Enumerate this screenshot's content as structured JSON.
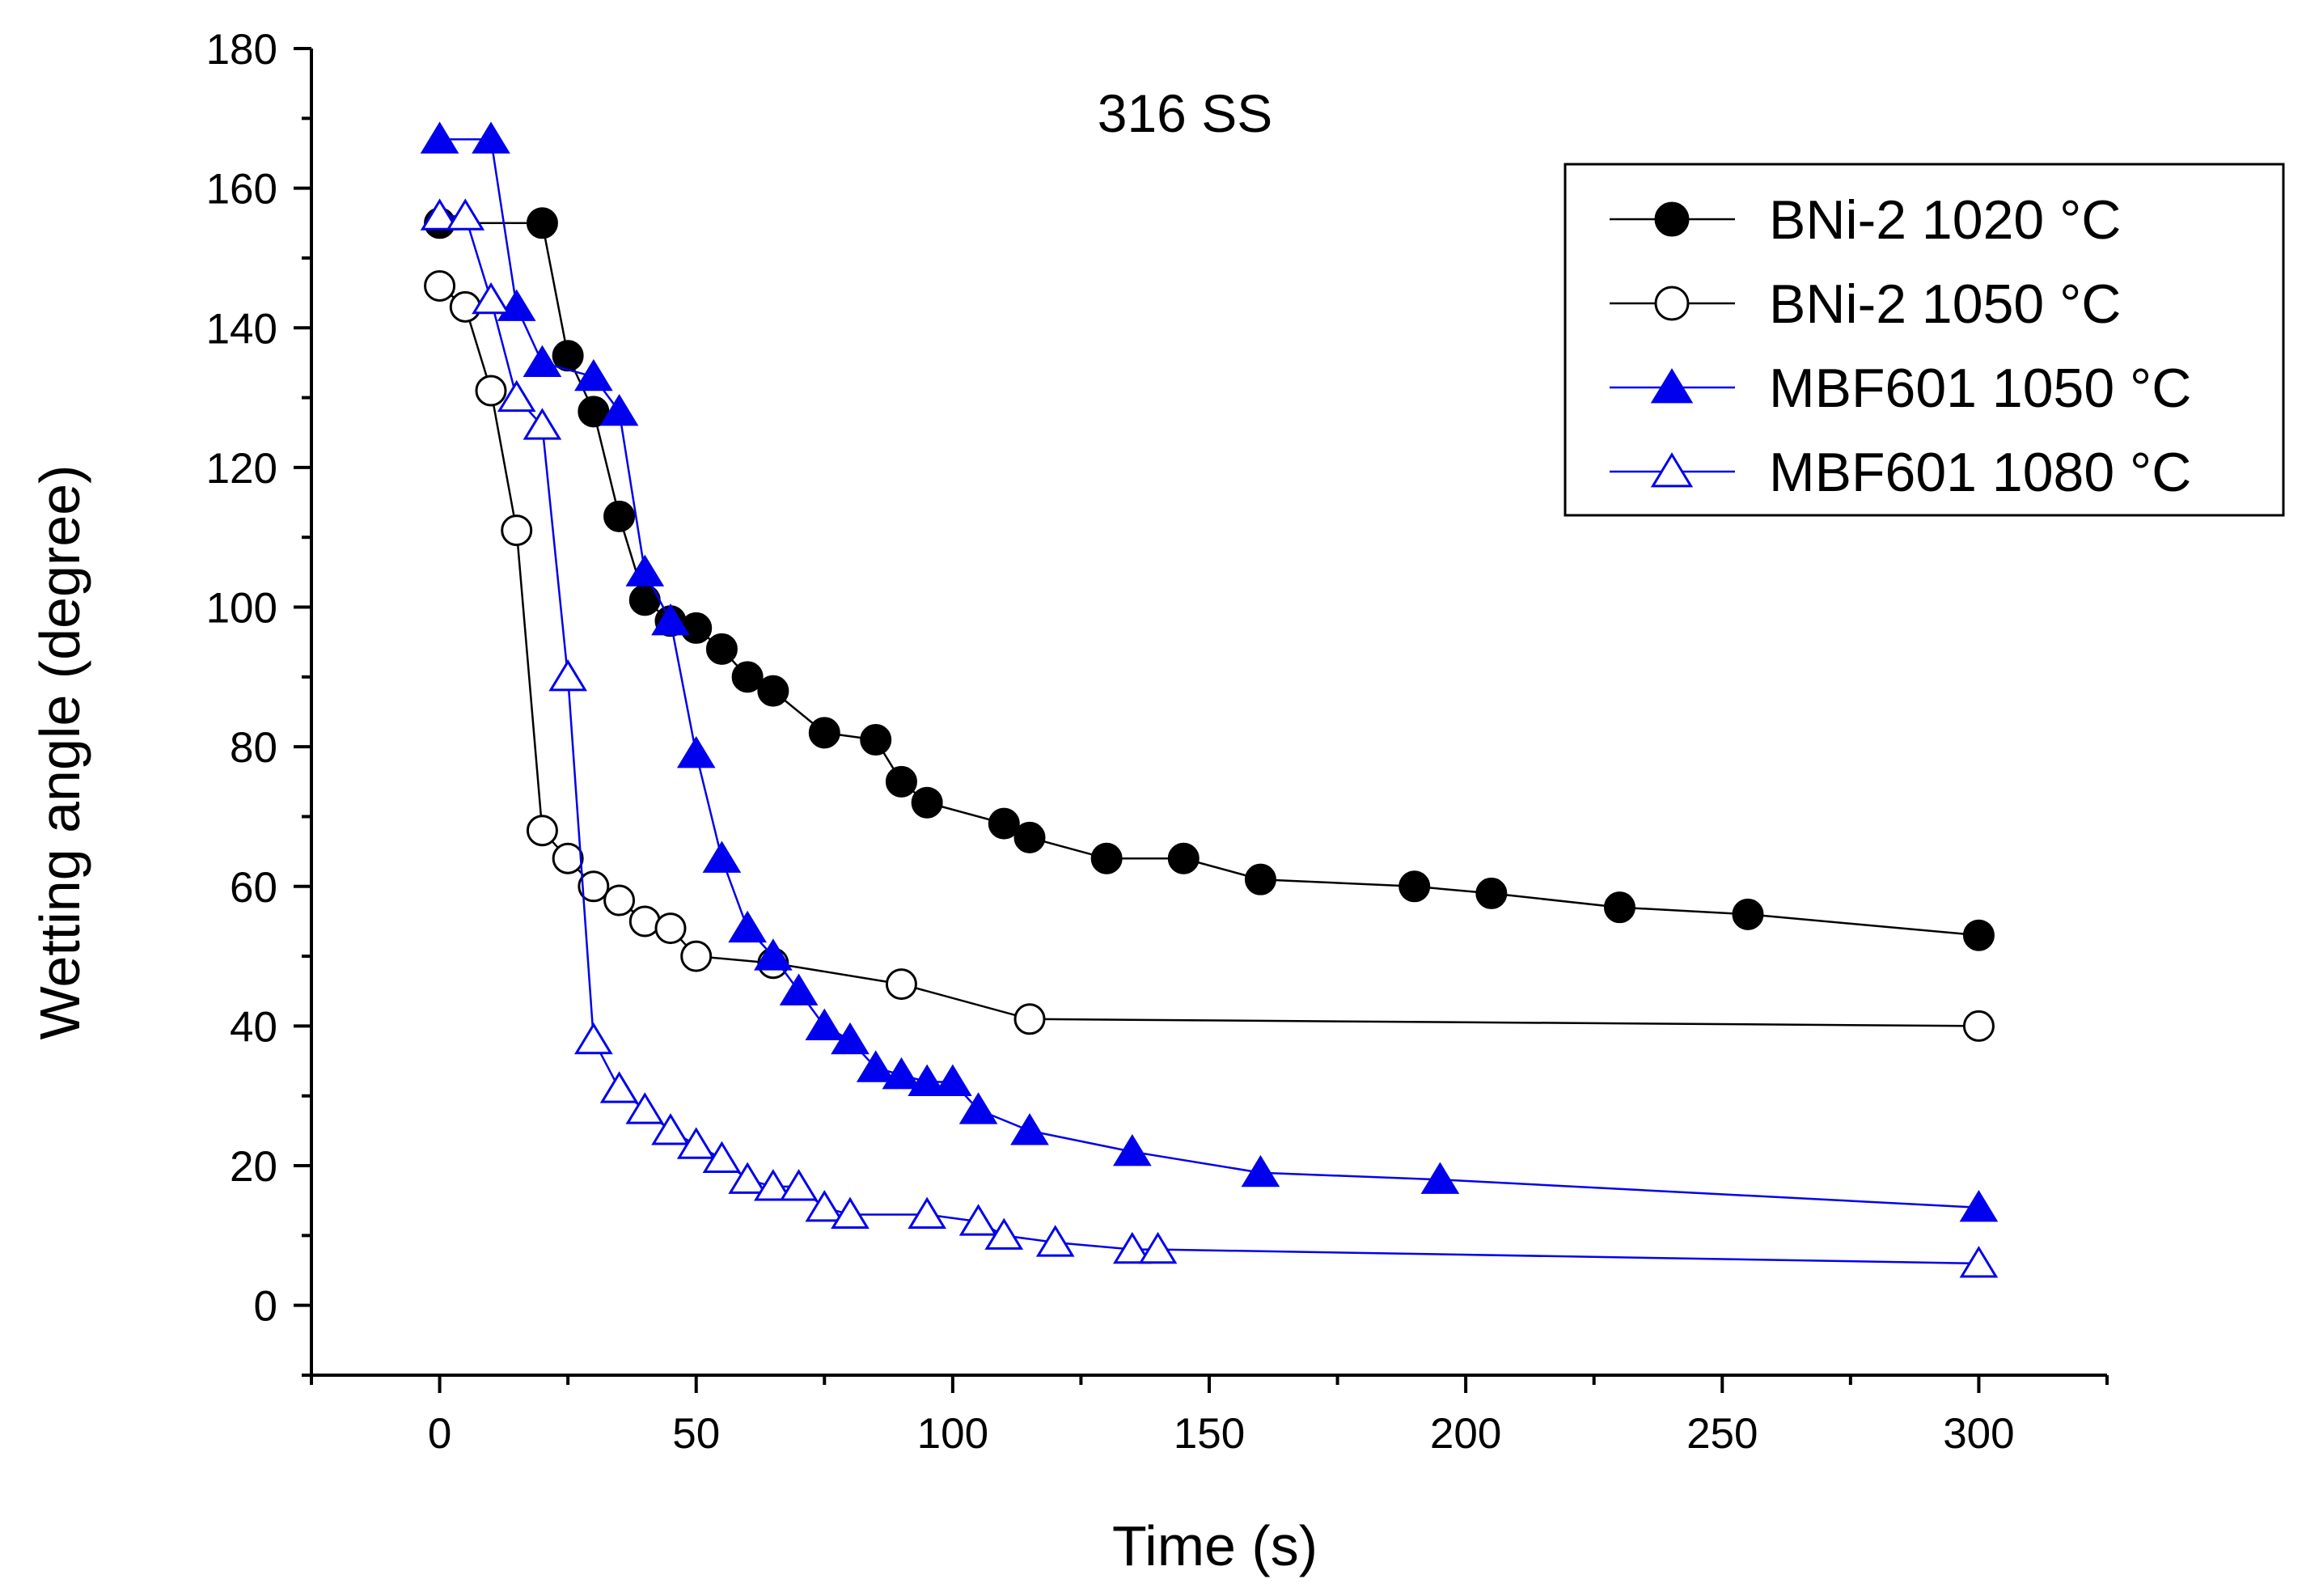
{
  "chart_data": {
    "type": "line",
    "title": "316 SS",
    "xlabel": "Time (s)",
    "ylabel": "Wetting angle (degree)",
    "xlim": [
      -25,
      325
    ],
    "ylim": [
      -10,
      180
    ],
    "xticks": [
      0,
      50,
      100,
      150,
      200,
      250,
      300
    ],
    "yticks": [
      0,
      20,
      40,
      60,
      80,
      100,
      120,
      140,
      160,
      180
    ],
    "grid": false,
    "legend_position": "top-right",
    "series": [
      {
        "name": "BNi-2 1020 °C",
        "color": "#000000",
        "marker": "circle",
        "filled": true,
        "x": [
          0,
          20,
          25,
          30,
          35,
          40,
          45,
          50,
          55,
          60,
          65,
          75,
          85,
          90,
          95,
          110,
          115,
          130,
          145,
          160,
          190,
          205,
          230,
          255,
          300
        ],
        "y": [
          155,
          155,
          136,
          128,
          113,
          101,
          98,
          97,
          94,
          90,
          88,
          82,
          81,
          75,
          72,
          69,
          67,
          64,
          64,
          61,
          60,
          59,
          57,
          56,
          53
        ]
      },
      {
        "name": "BNi-2 1050 °C",
        "color": "#000000",
        "marker": "circle",
        "filled": false,
        "x": [
          0,
          5,
          10,
          15,
          20,
          25,
          30,
          35,
          40,
          45,
          50,
          65,
          90,
          115,
          300
        ],
        "y": [
          146,
          143,
          131,
          111,
          68,
          64,
          60,
          58,
          55,
          54,
          50,
          49,
          46,
          41,
          40
        ]
      },
      {
        "name": "MBF601 1050 °C",
        "color": "#0000ee",
        "marker": "triangle",
        "filled": true,
        "x": [
          0,
          10,
          15,
          20,
          30,
          35,
          40,
          45,
          50,
          55,
          60,
          65,
          70,
          75,
          80,
          85,
          90,
          95,
          100,
          105,
          115,
          135,
          160,
          195,
          300
        ],
        "y": [
          167,
          167,
          143,
          135,
          133,
          128,
          105,
          98,
          79,
          64,
          54,
          50,
          45,
          40,
          38,
          34,
          33,
          32,
          32,
          28,
          25,
          22,
          19,
          18,
          14
        ]
      },
      {
        "name": "MBF601 1080 °C",
        "color": "#0000ee",
        "marker": "triangle",
        "filled": false,
        "x": [
          0,
          5,
          10,
          15,
          20,
          25,
          30,
          35,
          40,
          45,
          50,
          55,
          60,
          65,
          70,
          75,
          80,
          95,
          105,
          110,
          120,
          135,
          140,
          300
        ],
        "y": [
          156,
          156,
          144,
          130,
          126,
          90,
          38,
          31,
          28,
          25,
          23,
          21,
          18,
          17,
          17,
          14,
          13,
          13,
          12,
          10,
          9,
          8,
          8,
          6
        ]
      }
    ]
  }
}
